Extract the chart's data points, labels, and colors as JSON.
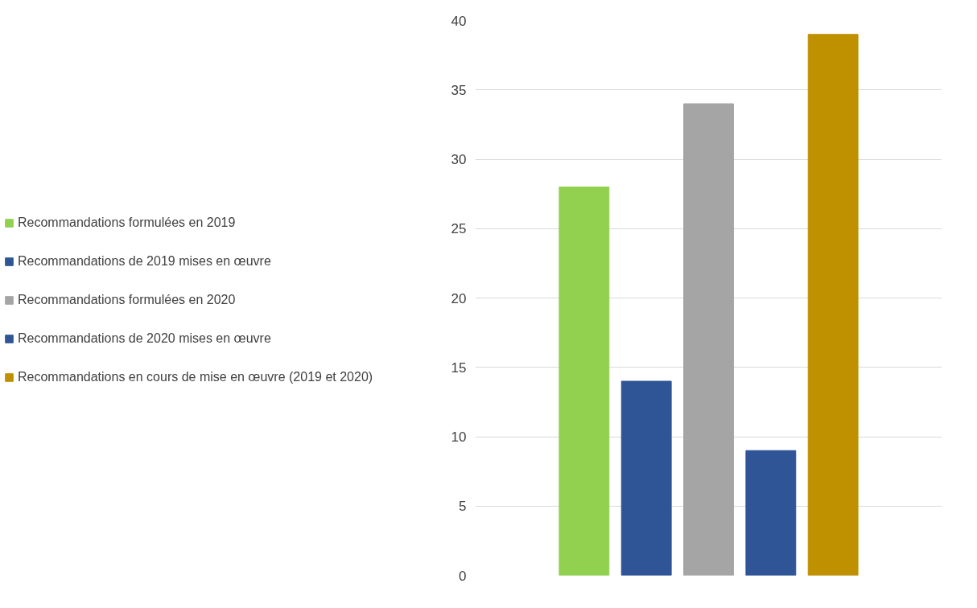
{
  "chart_data": {
    "type": "bar",
    "categories": [
      null
    ],
    "series": [
      {
        "name": "Recommandations formulées en 2019",
        "color": "#92d050",
        "values": [
          28
        ]
      },
      {
        "name": "Recommandations de 2019 mises en œuvre",
        "color": "#2f5597",
        "values": [
          14
        ]
      },
      {
        "name": "Recommandations formulées en 2020",
        "color": "#a5a5a5",
        "values": [
          34
        ]
      },
      {
        "name": "Recommandations de 2020 mises en œuvre",
        "color": "#2f5597",
        "values": [
          9
        ]
      },
      {
        "name": "Recommandations en cours de mise en œuvre (2019 et 2020)",
        "color": "#bf9000",
        "values": [
          39
        ]
      }
    ],
    "ylim": [
      0,
      40
    ],
    "yticks": [
      0,
      5,
      10,
      15,
      20,
      25,
      30,
      35,
      40
    ],
    "grid": "y",
    "legend": "left",
    "tick_labels": "y"
  }
}
